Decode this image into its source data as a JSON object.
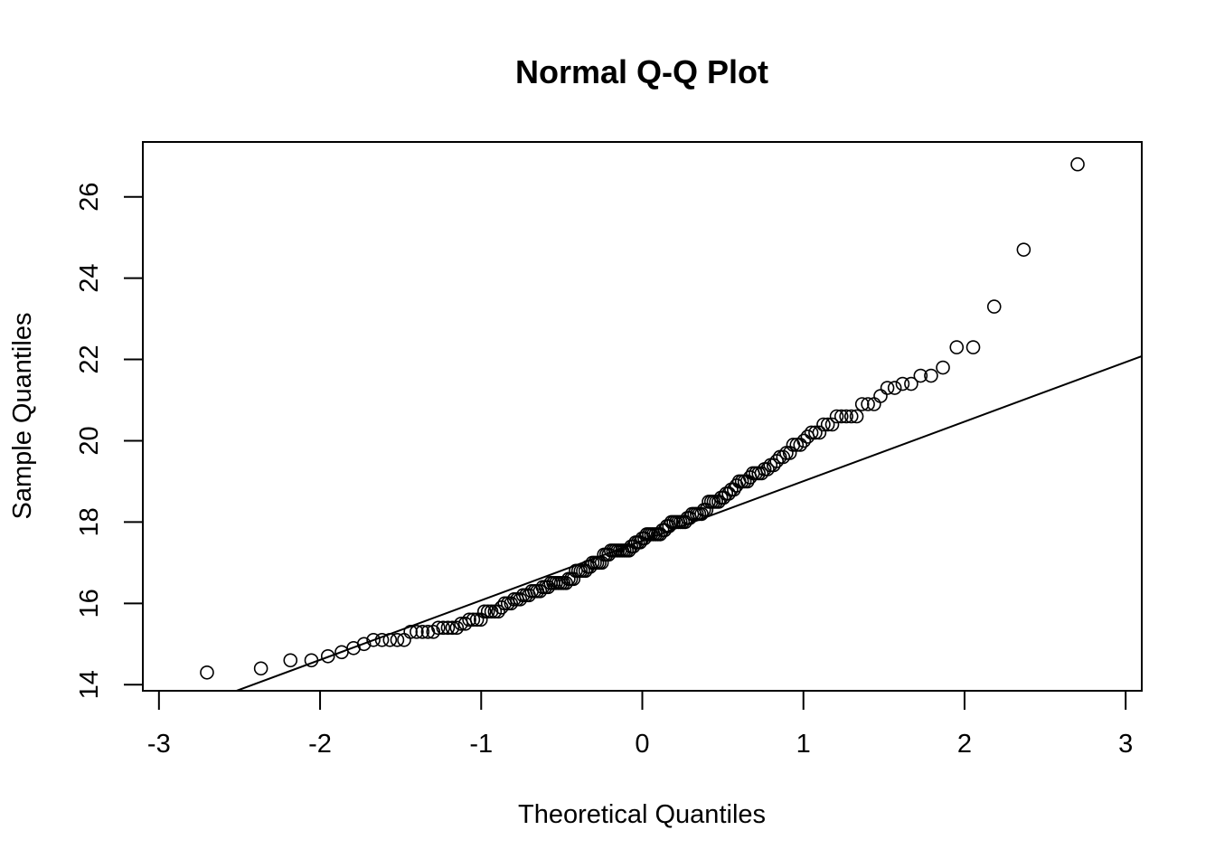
{
  "chart_data": {
    "type": "scatter",
    "title": "Normal Q-Q Plot",
    "xlabel": "Theoretical Quantiles",
    "ylabel": "Sample Quantiles",
    "xlim": [
      -3.1,
      3.1
    ],
    "ylim": [
      13.85,
      27.35
    ],
    "x_ticks": [
      -3,
      -2,
      -1,
      0,
      1,
      2,
      3
    ],
    "x_tick_labels": [
      "-3",
      "-2",
      "-1",
      "0",
      "1",
      "2",
      "3"
    ],
    "y_ticks": [
      14,
      16,
      18,
      20,
      22,
      24,
      26
    ],
    "y_tick_labels": [
      "14",
      "16",
      "18",
      "20",
      "22",
      "24",
      "26"
    ],
    "grid": false,
    "legend": "none",
    "reference_line": {
      "slope": 1.465,
      "intercept": 17.54
    },
    "series": [
      {
        "marker": "open-circle",
        "sample_quantiles": [
          14.3,
          14.4,
          14.6,
          14.6,
          14.7,
          14.8,
          14.9,
          15.0,
          15.1,
          15.1,
          15.1,
          15.1,
          15.1,
          15.3,
          15.3,
          15.3,
          15.3,
          15.3,
          15.4,
          15.4,
          15.4,
          15.4,
          15.4,
          15.5,
          15.5,
          15.6,
          15.6,
          15.6,
          15.6,
          15.8,
          15.8,
          15.8,
          15.8,
          15.8,
          15.9,
          16.0,
          16.0,
          16.0,
          16.1,
          16.1,
          16.1,
          16.2,
          16.2,
          16.2,
          16.3,
          16.3,
          16.3,
          16.3,
          16.4,
          16.4,
          16.4,
          16.5,
          16.5,
          16.5,
          16.5,
          16.5,
          16.5,
          16.5,
          16.6,
          16.6,
          16.6,
          16.8,
          16.8,
          16.8,
          16.8,
          16.8,
          16.9,
          16.9,
          17.0,
          17.0,
          17.0,
          17.0,
          17.0,
          17.2,
          17.2,
          17.2,
          17.3,
          17.3,
          17.3,
          17.3,
          17.3,
          17.3,
          17.3,
          17.3,
          17.3,
          17.4,
          17.4,
          17.5,
          17.5,
          17.5,
          17.6,
          17.6,
          17.7,
          17.7,
          17.7,
          17.7,
          17.7,
          17.7,
          17.7,
          17.8,
          17.8,
          17.9,
          17.9,
          18.0,
          18.0,
          18.0,
          18.0,
          18.0,
          18.0,
          18.0,
          18.1,
          18.1,
          18.2,
          18.2,
          18.2,
          18.2,
          18.2,
          18.3,
          18.3,
          18.5,
          18.5,
          18.5,
          18.5,
          18.5,
          18.6,
          18.6,
          18.7,
          18.7,
          18.8,
          18.8,
          18.9,
          19.0,
          19.0,
          19.0,
          19.0,
          19.1,
          19.2,
          19.2,
          19.2,
          19.2,
          19.3,
          19.3,
          19.4,
          19.4,
          19.5,
          19.6,
          19.6,
          19.7,
          19.7,
          19.9,
          19.9,
          19.9,
          20.0,
          20.1,
          20.2,
          20.2,
          20.2,
          20.4,
          20.4,
          20.4,
          20.6,
          20.6,
          20.6,
          20.6,
          20.6,
          20.9,
          20.9,
          20.9,
          21.1,
          21.3,
          21.3,
          21.4,
          21.4,
          21.6,
          21.6,
          21.8,
          22.3,
          22.3,
          23.3,
          24.7,
          26.8
        ]
      }
    ]
  }
}
